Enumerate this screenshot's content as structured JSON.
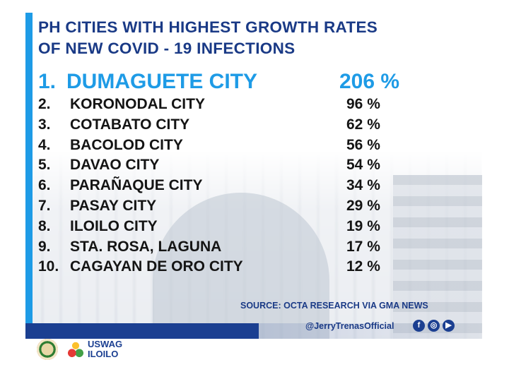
{
  "title": {
    "line1": "PH CITIES WITH HIGHEST GROWTH RATES",
    "line2": "OF NEW COVID - 19 INFECTIONS"
  },
  "rankings": [
    {
      "rank": "1.",
      "city": "DUMAGUETE CITY",
      "rate": "206 %",
      "growth_percent": 206
    },
    {
      "rank": "2.",
      "city": "KORONODAL CITY",
      "rate": "96 %",
      "growth_percent": 96
    },
    {
      "rank": "3.",
      "city": "COTABATO CITY",
      "rate": "62 %",
      "growth_percent": 62
    },
    {
      "rank": "4.",
      "city": "BACOLOD CITY",
      "rate": "56 %",
      "growth_percent": 56
    },
    {
      "rank": "5.",
      "city": "DAVAO CITY",
      "rate": "54 %",
      "growth_percent": 54
    },
    {
      "rank": "6.",
      "city": "PARAÑAQUE CITY",
      "rate": "34 %",
      "growth_percent": 34
    },
    {
      "rank": "7.",
      "city": "PASAY CITY",
      "rate": "29 %",
      "growth_percent": 29
    },
    {
      "rank": "8.",
      "city": "ILOILO CITY",
      "rate": "19 %",
      "growth_percent": 19
    },
    {
      "rank": "9.",
      "city": "STA. ROSA, LAGUNA",
      "rate": "17 %",
      "growth_percent": 17
    },
    {
      "rank": "10.",
      "city": "CAGAYAN DE ORO CITY",
      "rate": "12 %",
      "growth_percent": 12
    }
  ],
  "source": "SOURCE: OCTA RESEARCH VIA GMA NEWS",
  "handle": "@JerryTrenasOfficial",
  "social_icons": {
    "facebook": {
      "icon": "facebook-icon",
      "glyph": "f"
    },
    "instagram": {
      "icon": "instagram-icon",
      "glyph": "◎"
    },
    "youtube": {
      "icon": "youtube-icon",
      "glyph": "▶"
    }
  },
  "branding": {
    "line1": "USWAG",
    "line2": "ILOILO"
  },
  "colors": {
    "title": "#1a3a86",
    "highlight": "#1e9be6",
    "text": "#141414",
    "bar_dark": "#1b3f91"
  }
}
